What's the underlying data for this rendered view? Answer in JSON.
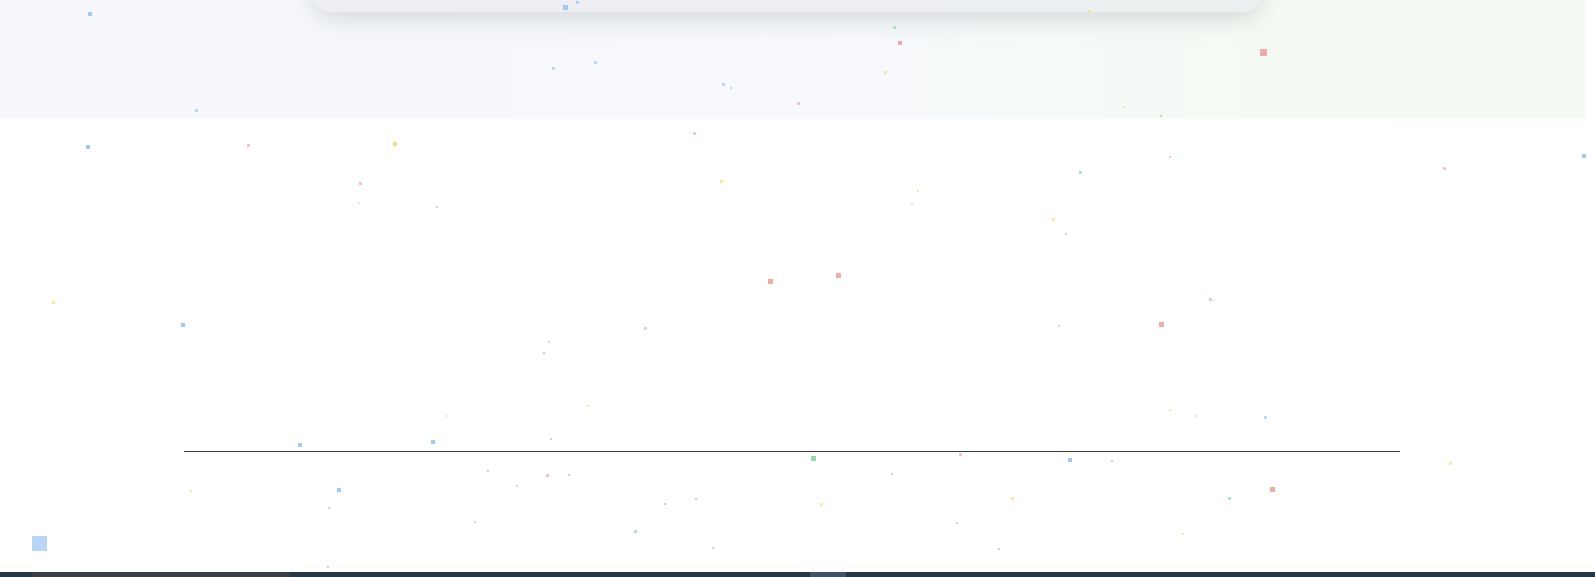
{
  "page": {
    "title": ""
  },
  "colors": {
    "background": "#ffffff",
    "band_start": "#f6f8fc",
    "band_end": "#f3fbf2",
    "divider": "#3a3a3a",
    "bottom_bar": "#243848",
    "confetti_blue": "#8fc2f0",
    "confetti_red": "#f29c97",
    "confetti_yellow": "#f7d864",
    "confetti_green": "#7ed39a"
  },
  "icons": {
    "corner_square": "square-icon"
  }
}
